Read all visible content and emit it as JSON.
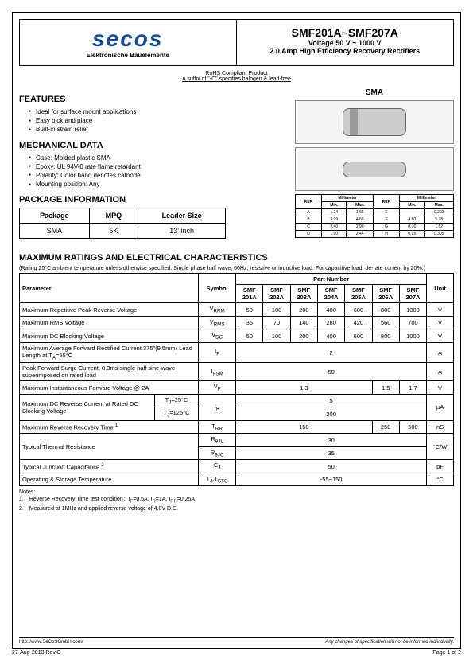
{
  "header": {
    "logo": "secos",
    "logo_sub": "Elektronische Bauelemente",
    "title": "SMF201A~SMF207A",
    "voltage": "Voltage 50 V ~ 1000 V",
    "desc": "2.0 Amp High Efficiency Recovery Rectifiers"
  },
  "rohs": {
    "line1": "RoHS Compliant Product",
    "line2": "A suffix of \"-C\" specifies halogen & lead-free"
  },
  "features": {
    "title": "FEATURES",
    "items": [
      "Ideal for surface mount applications",
      "Easy pick and place",
      "Built-in strain relief"
    ]
  },
  "mechanical": {
    "title": "MECHANICAL DATA",
    "items": [
      "Case: Molded plastic SMA",
      "Epoxy: UL 94V-0 rate flame retardant",
      "Polarity: Color band denotes cathode",
      "Mounting position: Any"
    ]
  },
  "sma_label": "SMA",
  "package_info": {
    "title": "PACKAGE INFORMATION",
    "headers": [
      "Package",
      "MPQ",
      "Leader Size"
    ],
    "row": [
      "SMA",
      "5K",
      "13' inch"
    ]
  },
  "dim_table": {
    "header_top": [
      "REF.",
      "Millimeter",
      "REF.",
      "Millimeter"
    ],
    "header_sub": [
      "",
      "Min.",
      "Max.",
      "",
      "Min.",
      "Max."
    ],
    "rows": [
      [
        "A",
        "1.24",
        "1.65",
        "E",
        "",
        "0.203"
      ],
      [
        "B",
        "3.99",
        "4.60",
        "F",
        "4.80",
        "5.28"
      ],
      [
        "C",
        "2.40",
        "2.90",
        "G",
        "0.76",
        "1.52"
      ],
      [
        "D",
        "1.90",
        "2.44",
        "H",
        "0.15",
        "0.305"
      ]
    ]
  },
  "ratings": {
    "title": "MAXIMUM RATINGS AND ELECTRICAL CHARACTERISTICS",
    "note": "(Rating 25°C ambient temperature unless otherwise specified. Single phase half wave, 60Hz, resistive or inductive load. For capacitive load, de-rate current by 20%.)",
    "headers": {
      "parameter": "Parameter",
      "symbol": "Symbol",
      "part_number": "Part Number",
      "unit": "Unit",
      "parts": [
        "SMF 201A",
        "SMF 202A",
        "SMF 203A",
        "SMF 204A",
        "SMF 205A",
        "SMF 206A",
        "SMF 207A"
      ]
    },
    "rows": [
      {
        "param": "Maximum Repetitive Peak Reverse Voltage",
        "symbol": "V<sub>RRM</sub>",
        "vals": [
          "50",
          "100",
          "200",
          "400",
          "600",
          "800",
          "1000"
        ],
        "unit": "V"
      },
      {
        "param": "Maximum RMS Voltage",
        "symbol": "V<sub>RMS</sub>",
        "vals": [
          "35",
          "70",
          "140",
          "280",
          "420",
          "560",
          "700"
        ],
        "unit": "V"
      },
      {
        "param": "Maximum DC Blocking Voltage",
        "symbol": "V<sub>DC</sub>",
        "vals": [
          "50",
          "100",
          "200",
          "400",
          "600",
          "800",
          "1000"
        ],
        "unit": "V"
      },
      {
        "param": "Maximum Average Forward Rectified Current.375\"(9.5mm) Lead Length at T<sub>A</sub>=55°C",
        "symbol": "I<sub>F</sub>",
        "span": "2",
        "unit": "A"
      },
      {
        "param": "Peak Forward Surge Current, 8.3ms single half sine-wave superimposed on rated load",
        "symbol": "I<sub>FSM</sub>",
        "span": "50",
        "unit": "A"
      },
      {
        "param": "Maximum Instantaneous Forward Voltage @ 2A",
        "symbol": "V<sub>F</sub>",
        "merge": [
          {
            "cols": 5,
            "val": "1.3"
          },
          {
            "cols": 1,
            "val": "1.5"
          },
          {
            "cols": 1,
            "val": "1.7"
          }
        ],
        "unit": "V"
      },
      {
        "param_rows": [
          {
            "label": "Maximum DC Reverse Current at Rated DC Blocking Voltage",
            "sub": "T<sub>J</sub>=25°C",
            "symbol": "I<sub>R</sub>",
            "span": "5",
            "unit": "µA"
          },
          {
            "sub": "T<sub>J</sub>=125°C",
            "span": "200"
          }
        ]
      },
      {
        "param": "Maximum Reverse Recovery Time <sup>1</sup>",
        "symbol": "T<sub>RR</sub>",
        "merge": [
          {
            "cols": 5,
            "val": "150"
          },
          {
            "cols": 1,
            "val": "250"
          },
          {
            "cols": 1,
            "val": "500"
          }
        ],
        "unit": "nS"
      },
      {
        "param_rows2": [
          {
            "label": "Typical Thermal Resistance",
            "symbol": "R<sub>θJL</sub>",
            "span": "30",
            "unit": "°C/W"
          },
          {
            "symbol": "R<sub>θJC</sub>",
            "span": "35"
          }
        ]
      },
      {
        "param": "Typical Junction Capacitance <sup>2</sup>",
        "symbol": "C<sub>J</sub>",
        "span": "50",
        "unit": "pF"
      },
      {
        "param": "Operating & Storage Temperature",
        "symbol": "T<sub>J</sub>,T<sub>STG</sub>",
        "span": "-55~150",
        "unit": "°C"
      }
    ]
  },
  "notes": {
    "title": "Notes:",
    "items": [
      "1.　Reverse Recovery Time test condition：I<sub>F</sub>=0.5A, I<sub>R</sub>=1A, I<sub>RR</sub>=0.25A",
      "2.　Measured at 1MHz and applied reverse voltage of 4.0V D.C."
    ]
  },
  "footer": {
    "url": "http://www.SeCoSGmbH.com/",
    "disclaimer": "Any changes of specification will not be informed individually.",
    "date": "27-Aug-2013 Rev.C",
    "page": "Page 1 of 2"
  }
}
